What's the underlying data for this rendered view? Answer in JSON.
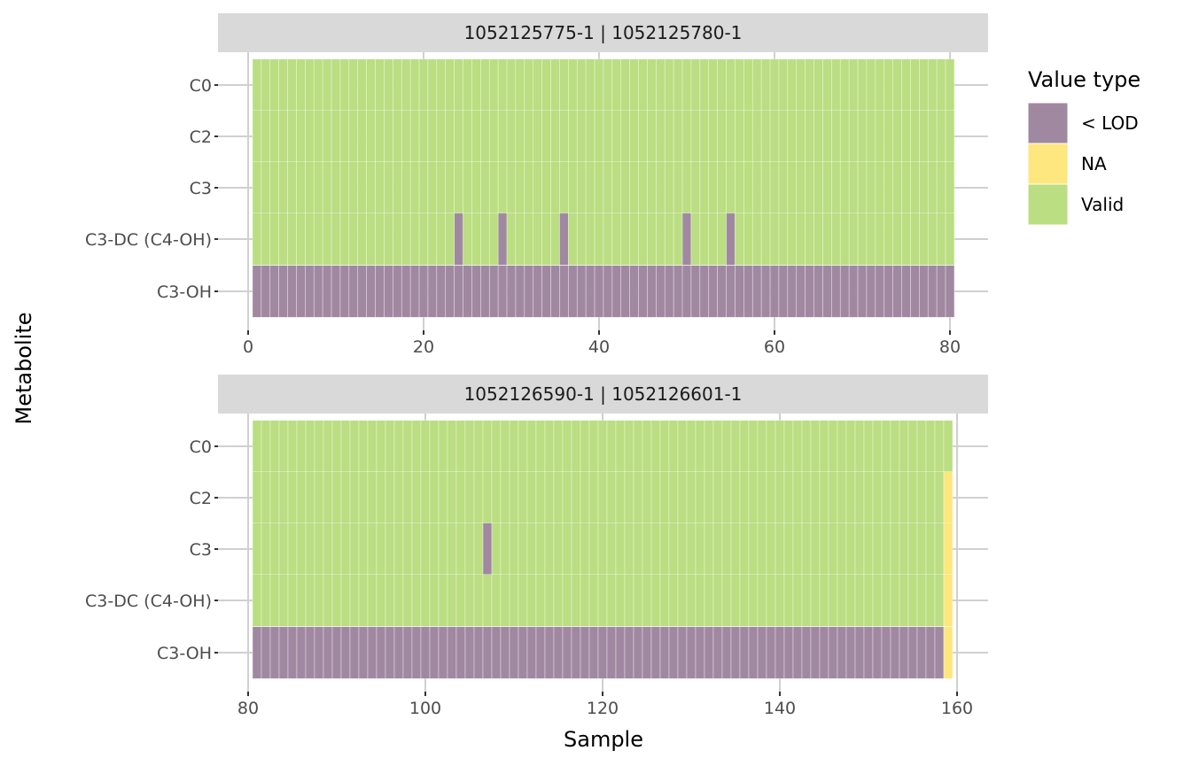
{
  "chart_data": {
    "type": "heatmap",
    "xlabel": "Sample",
    "ylabel": "Metabolite",
    "metabolites": [
      "C0",
      "C2",
      "C3",
      "C3-DC (C4-OH)",
      "C3-OH"
    ],
    "legend": {
      "title": "Value type",
      "position": "right",
      "entries": [
        {
          "label": "< LOD",
          "color": "#A188A1"
        },
        {
          "label": "NA",
          "color": "#FDE77E"
        },
        {
          "label": "Valid",
          "color": "#BADE81"
        }
      ]
    },
    "grid": true,
    "panels": [
      {
        "strip": "1052125775-1 | 1052125780-1",
        "x_range": [
          1,
          80
        ],
        "xlim": [
          0,
          80.5
        ],
        "x_ticks": [
          0,
          20,
          40,
          60,
          80
        ],
        "default_type": "Valid",
        "row_overrides": {
          "C3-OH": "< LOD"
        },
        "exceptions": [
          {
            "metabolite": "C3-DC (C4-OH)",
            "sample": 24,
            "type": "< LOD"
          },
          {
            "metabolite": "C3-DC (C4-OH)",
            "sample": 29,
            "type": "< LOD"
          },
          {
            "metabolite": "C3-DC (C4-OH)",
            "sample": 36,
            "type": "< LOD"
          },
          {
            "metabolite": "C3-DC (C4-OH)",
            "sample": 50,
            "type": "< LOD"
          },
          {
            "metabolite": "C3-DC (C4-OH)",
            "sample": 55,
            "type": "< LOD"
          }
        ]
      },
      {
        "strip": "1052126590-1 | 1052126601-1",
        "x_range": [
          81,
          159
        ],
        "xlim": [
          80.5,
          160
        ],
        "x_ticks": [
          80,
          100,
          120,
          140,
          160
        ],
        "default_type": "Valid",
        "row_overrides": {
          "C3-OH": "< LOD"
        },
        "exceptions": [
          {
            "metabolite": "C3",
            "sample": 107,
            "type": "< LOD"
          },
          {
            "metabolite": "C2",
            "sample": 159,
            "type": "NA"
          },
          {
            "metabolite": "C3",
            "sample": 159,
            "type": "NA"
          },
          {
            "metabolite": "C3-DC (C4-OH)",
            "sample": 159,
            "type": "NA"
          },
          {
            "metabolite": "C3-OH",
            "sample": 159,
            "type": "NA"
          }
        ]
      }
    ]
  }
}
